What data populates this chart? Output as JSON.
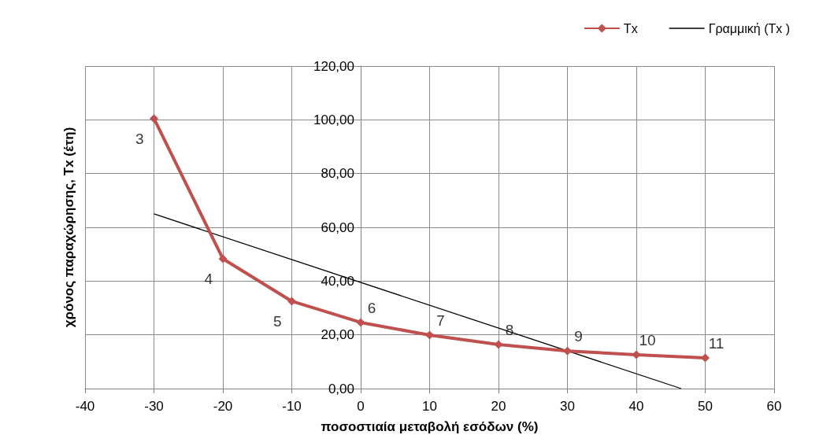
{
  "chart_data": {
    "type": "line",
    "xlabel": "ποσοστιαία μεταβολή εσόδων (%)",
    "ylabel": "χρόνος παραχώρησης, Tx (έτη)",
    "x": [
      -30,
      -20,
      -10,
      0,
      10,
      20,
      30,
      40,
      50
    ],
    "series": [
      {
        "name": "Tx",
        "color": "#c0504d",
        "marker": "diamond",
        "values": [
          100.5,
          48.3,
          32.5,
          24.6,
          19.9,
          16.4,
          14,
          12.6,
          11.4
        ]
      },
      {
        "name": "Γραμμική (Tx )",
        "color": "#000000",
        "marker": "none",
        "x": [
          -30,
          46.5
        ],
        "values": [
          65,
          0
        ]
      }
    ],
    "xlim": [
      -40,
      60
    ],
    "xticks": [
      -40,
      -30,
      -20,
      -10,
      0,
      10,
      20,
      30,
      40,
      50,
      60
    ],
    "ylim": [
      0,
      120
    ],
    "yticks": [
      {
        "value": 0,
        "label": "0,00"
      },
      {
        "value": 20,
        "label": "20,00"
      },
      {
        "value": 40,
        "label": "40,00"
      },
      {
        "value": 60,
        "label": "60,00"
      },
      {
        "value": 80,
        "label": "80,00"
      },
      {
        "value": 100,
        "label": "100,00"
      },
      {
        "value": 120,
        "label": "120,00"
      }
    ],
    "grid": true,
    "legend": "top right",
    "line_style": "solid",
    "annotations": [
      "3",
      "4",
      "5",
      "6",
      "7",
      "8",
      "9",
      "10",
      "11"
    ]
  }
}
